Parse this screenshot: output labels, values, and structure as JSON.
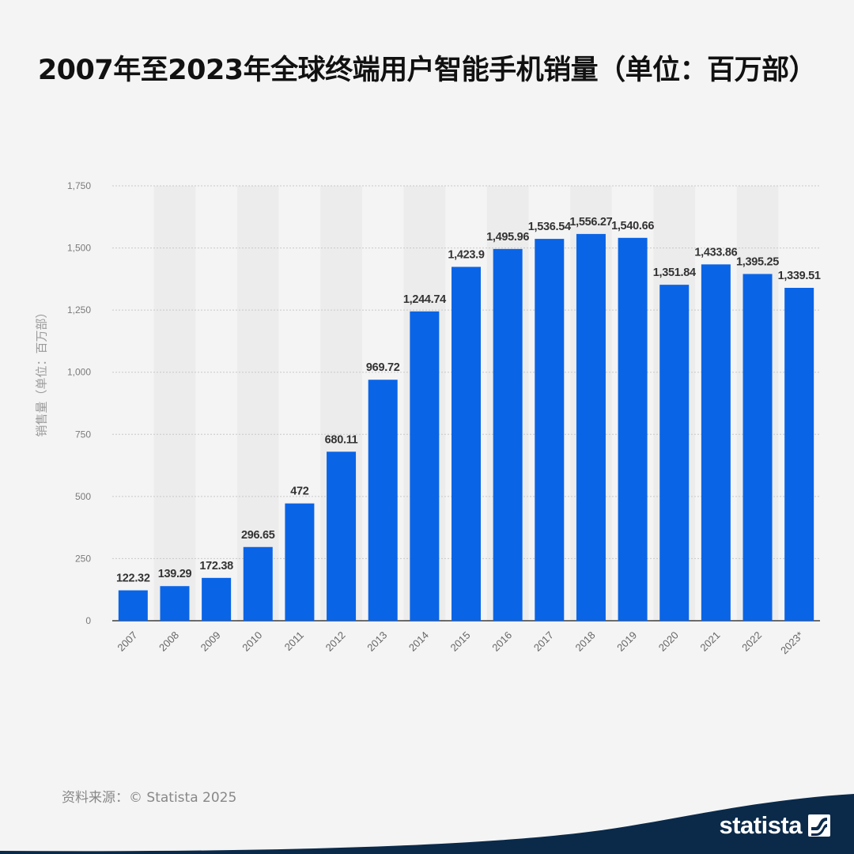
{
  "header": {
    "title": "2007年至2023年全球终端用户智能手机销量（单位：百万部）"
  },
  "footer": {
    "source": "资料来源：© Statista 2025",
    "brand": "statista"
  },
  "colors": {
    "bar": "#0a64e6",
    "background": "#f4f4f4",
    "band": "#ececec",
    "brand_band": "#0b2a4a"
  },
  "chart_data": {
    "type": "bar",
    "categories": [
      "2007",
      "2008",
      "2009",
      "2010",
      "2011",
      "2012",
      "2013",
      "2014",
      "2015",
      "2016",
      "2017",
      "2018",
      "2019",
      "2020",
      "2021",
      "2022",
      "2023*"
    ],
    "values": [
      122.32,
      139.29,
      172.38,
      296.65,
      472,
      680.11,
      969.72,
      1244.74,
      1423.9,
      1495.96,
      1536.54,
      1556.27,
      1540.66,
      1351.84,
      1433.86,
      1395.25,
      1339.51
    ],
    "data_labels": [
      "122.32",
      "139.29",
      "172.38",
      "296.65",
      "472",
      "680.11",
      "969.72",
      "1,244.74",
      "1,423.9",
      "1,495.96",
      "1,536.54",
      "1,556.27",
      "1,540.66",
      "1,351.84",
      "1,433.86",
      "1,395.25",
      "1,339.51"
    ],
    "ylabel": "销售量（单位：百万部）",
    "xlabel": "",
    "ylim": [
      0,
      1750
    ],
    "yticks": [
      0,
      250,
      500,
      750,
      1000,
      1250,
      1500,
      1750
    ],
    "ytick_labels": [
      "0",
      "250",
      "500",
      "750",
      "1,000",
      "1,250",
      "1,500",
      "1,750"
    ],
    "grid": true,
    "legend": "none"
  }
}
